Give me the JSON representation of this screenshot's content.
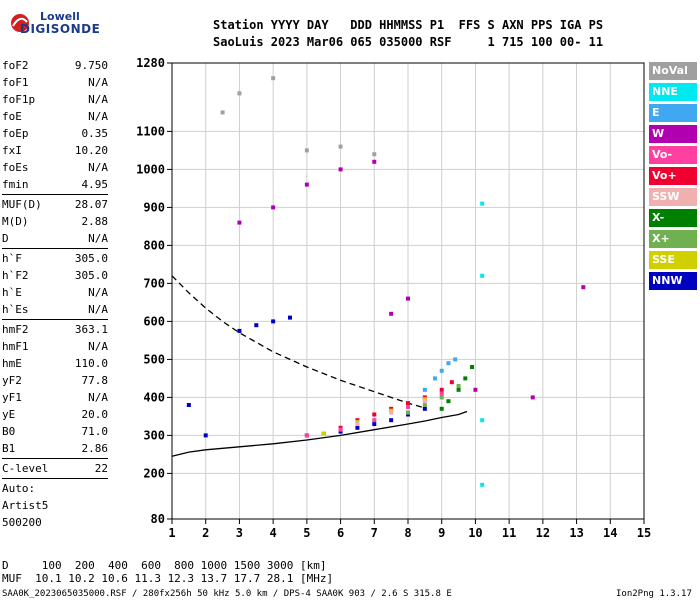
{
  "logo": {
    "line1": "Lowell",
    "line2": "DIGISONDE"
  },
  "header": {
    "row1": "Station YYYY DAY   DDD HHMMSS P1  FFS S AXN PPS IGA PS",
    "row2": "SaoLuis 2023 Mar06 065 035000 RSF     1 715 100 00- 11"
  },
  "params": {
    "g1": [
      {
        "k": "foF2",
        "v": "9.750"
      },
      {
        "k": "foF1",
        "v": "N/A"
      },
      {
        "k": "foF1p",
        "v": "N/A"
      },
      {
        "k": "foE",
        "v": "N/A"
      },
      {
        "k": "foEp",
        "v": "0.35"
      },
      {
        "k": "fxI",
        "v": "10.20"
      },
      {
        "k": "foEs",
        "v": "N/A"
      },
      {
        "k": "fmin",
        "v": "4.95"
      }
    ],
    "g2": [
      {
        "k": "MUF(D)",
        "v": "28.07"
      },
      {
        "k": "M(D)",
        "v": "2.88"
      },
      {
        "k": "D",
        "v": "N/A"
      }
    ],
    "g3": [
      {
        "k": "h`F",
        "v": "305.0"
      },
      {
        "k": "h`F2",
        "v": "305.0"
      },
      {
        "k": "h`E",
        "v": "N/A"
      },
      {
        "k": "h`Es",
        "v": "N/A"
      }
    ],
    "g4": [
      {
        "k": "hmF2",
        "v": "363.1"
      },
      {
        "k": "hmF1",
        "v": "N/A"
      },
      {
        "k": "hmE",
        "v": "110.0"
      },
      {
        "k": "yF2",
        "v": "77.8"
      },
      {
        "k": "yF1",
        "v": "N/A"
      },
      {
        "k": "yE",
        "v": "20.0"
      },
      {
        "k": "B0",
        "v": "71.0"
      },
      {
        "k": "B1",
        "v": "2.86"
      }
    ],
    "g5": [
      {
        "k": "C-level",
        "v": "22"
      }
    ],
    "auto": [
      "Auto:",
      "Artist5",
      "500200"
    ]
  },
  "legend": [
    {
      "label": "NoVal",
      "color": "#a0a0a0"
    },
    {
      "label": "NNE",
      "color": "#00e8f0"
    },
    {
      "label": "E",
      "color": "#40a8f0"
    },
    {
      "label": "W",
      "color": "#b000b0"
    },
    {
      "label": "Vo-",
      "color": "#ff40a0"
    },
    {
      "label": "Vo+",
      "color": "#f00030"
    },
    {
      "label": "SSW",
      "color": "#f0b0b0"
    },
    {
      "label": "X-",
      "color": "#008000"
    },
    {
      "label": "X+",
      "color": "#70b050"
    },
    {
      "label": "SSE",
      "color": "#d0d000"
    },
    {
      "label": "NNW",
      "color": "#0000c0"
    }
  ],
  "footer": {
    "line1": "D     100  200  400  600  800 1000 1500 3000 [km]",
    "line2": "MUF  10.1 10.2 10.6 11.3 12.3 13.7 17.7 28.1 [MHz]",
    "left": "SAA0K_2023065035000.RSF / 280fx256h 50 kHz 5.0 km / DPS-4 SAA0K 903 / 2.6 S 315.8 E",
    "right": "Ion2Png 1.3.17"
  },
  "chart_data": {
    "type": "scatter",
    "title": "",
    "xlabel": "",
    "ylabel": "",
    "xlim": [
      1,
      15
    ],
    "ylim": [
      80,
      1280
    ],
    "xticks": [
      1,
      2,
      3,
      4,
      5,
      6,
      7,
      8,
      9,
      10,
      11,
      12,
      13,
      14,
      15
    ],
    "yticks": [
      80,
      200,
      300,
      400,
      500,
      600,
      700,
      800,
      900,
      1000,
      1100,
      1280
    ],
    "grid": true,
    "traces": [
      {
        "name": "",
        "style": "solid",
        "x": [
          1.0,
          1.5,
          2.0,
          3.0,
          4.0,
          5.0,
          6.0,
          7.0,
          8.0,
          8.5,
          9.0,
          9.5,
          9.75
        ],
        "y": [
          245,
          256,
          262,
          270,
          278,
          288,
          300,
          315,
          330,
          338,
          347,
          355,
          363
        ]
      },
      {
        "name": "",
        "style": "dashed",
        "x": [
          1.0,
          1.5,
          2.0,
          2.5,
          3.0,
          3.5,
          4.0,
          5.0,
          6.0,
          7.0,
          8.0,
          8.5
        ],
        "y": [
          720,
          675,
          635,
          600,
          570,
          545,
          520,
          480,
          445,
          415,
          385,
          372
        ]
      }
    ],
    "series": [
      {
        "name": "NNW",
        "color": "#0000c0",
        "x": [
          5.0,
          5.5,
          6.0,
          6.5,
          7.0,
          7.5,
          8.0,
          2.0,
          1.5,
          3.0,
          3.5,
          4.0,
          4.5,
          8.5
        ],
        "y": [
          300,
          305,
          310,
          320,
          330,
          340,
          355,
          300,
          380,
          575,
          590,
          600,
          610,
          370
        ]
      },
      {
        "name": "Vo+",
        "color": "#f00030",
        "x": [
          6.0,
          6.5,
          7.0,
          7.5,
          8.0,
          8.5,
          9.0,
          9.3
        ],
        "y": [
          320,
          340,
          355,
          370,
          385,
          400,
          420,
          440
        ]
      },
      {
        "name": "Vo-",
        "color": "#ff40a0",
        "x": [
          5.0,
          6.0,
          7.0,
          8.0,
          8.5,
          9.0
        ],
        "y": [
          300,
          315,
          340,
          375,
          395,
          410
        ]
      },
      {
        "name": "E",
        "color": "#40a8f0",
        "x": [
          8.5,
          8.8,
          9.0,
          9.2,
          9.4
        ],
        "y": [
          420,
          450,
          470,
          490,
          500
        ]
      },
      {
        "name": "X-",
        "color": "#008000",
        "x": [
          9.0,
          9.2,
          9.5,
          9.7,
          9.9
        ],
        "y": [
          370,
          390,
          420,
          450,
          480
        ]
      },
      {
        "name": "X+",
        "color": "#70b050",
        "x": [
          8.0,
          8.5,
          9.0,
          9.5
        ],
        "y": [
          360,
          380,
          400,
          430
        ]
      },
      {
        "name": "SSE",
        "color": "#d0d000",
        "x": [
          5.5,
          6.5,
          7.5,
          8.5
        ],
        "y": [
          305,
          335,
          365,
          395
        ]
      },
      {
        "name": "SSW",
        "color": "#f0b0b0",
        "x": [
          6.5,
          7.5,
          8.5
        ],
        "y": [
          330,
          360,
          390
        ]
      },
      {
        "name": "W",
        "color": "#b000b0",
        "x": [
          3.0,
          4.0,
          5.0,
          6.0,
          7.0,
          7.5,
          8.0,
          13.2,
          11.7,
          10.0
        ],
        "y": [
          860,
          900,
          960,
          1000,
          1020,
          620,
          660,
          690,
          400,
          420
        ]
      },
      {
        "name": "NNE",
        "color": "#00e8f0",
        "x": [
          10.2,
          10.2,
          10.2,
          10.2
        ],
        "y": [
          910,
          720,
          340,
          170
        ]
      },
      {
        "name": "NoVal",
        "color": "#a0a0a0",
        "x": [
          2.5,
          3.0,
          4.0,
          5.0,
          6.0,
          7.0
        ],
        "y": [
          1150,
          1200,
          1240,
          1050,
          1060,
          1040
        ]
      }
    ]
  }
}
